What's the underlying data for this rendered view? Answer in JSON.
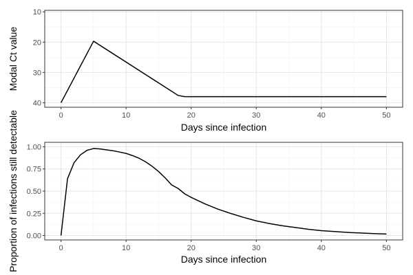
{
  "chart_data": [
    {
      "type": "line",
      "xlabel": "Days since infection",
      "ylabel": "Modal Ct value",
      "xlim": [
        -2.5,
        52.5
      ],
      "ylim": [
        41.5,
        9.5
      ],
      "y_reversed": true,
      "x_ticks": [
        0,
        10,
        20,
        30,
        40,
        50
      ],
      "x_tick_labels": [
        "0",
        "10",
        "20",
        "30",
        "40",
        "50"
      ],
      "y_ticks": [
        10,
        20,
        30,
        40
      ],
      "y_tick_labels": [
        "10",
        "20",
        "30",
        "40"
      ],
      "grid": true,
      "series": [
        {
          "x": [
            0,
            5,
            18,
            19,
            50
          ],
          "y": [
            40,
            19.7,
            37.6,
            38,
            38
          ]
        }
      ]
    },
    {
      "type": "line",
      "xlabel": "Days since infection",
      "ylabel": "Proportion of infections still detectable",
      "xlim": [
        -2.5,
        52.5
      ],
      "ylim": [
        -0.05,
        1.05
      ],
      "x_ticks": [
        0,
        10,
        20,
        30,
        40,
        50
      ],
      "x_tick_labels": [
        "0",
        "10",
        "20",
        "30",
        "40",
        "50"
      ],
      "y_ticks": [
        0,
        0.25,
        0.5,
        0.75,
        1
      ],
      "y_tick_labels": [
        "0.00",
        "0.25",
        "0.50",
        "0.75",
        "1.00"
      ],
      "grid": true,
      "series": [
        {
          "x": [
            0,
            1,
            2,
            3,
            4,
            5,
            6,
            7,
            8,
            9,
            10,
            11,
            12,
            13,
            14,
            15,
            16,
            17,
            18,
            19,
            20,
            22,
            24,
            26,
            28,
            30,
            32,
            34,
            36,
            38,
            40,
            42,
            44,
            46,
            48,
            50
          ],
          "y": [
            0,
            0.64,
            0.82,
            0.91,
            0.96,
            0.98,
            0.975,
            0.965,
            0.955,
            0.94,
            0.925,
            0.9,
            0.87,
            0.83,
            0.78,
            0.72,
            0.65,
            0.57,
            0.53,
            0.47,
            0.43,
            0.36,
            0.3,
            0.25,
            0.205,
            0.165,
            0.135,
            0.11,
            0.09,
            0.07,
            0.055,
            0.045,
            0.035,
            0.028,
            0.022,
            0.017
          ]
        }
      ]
    }
  ]
}
